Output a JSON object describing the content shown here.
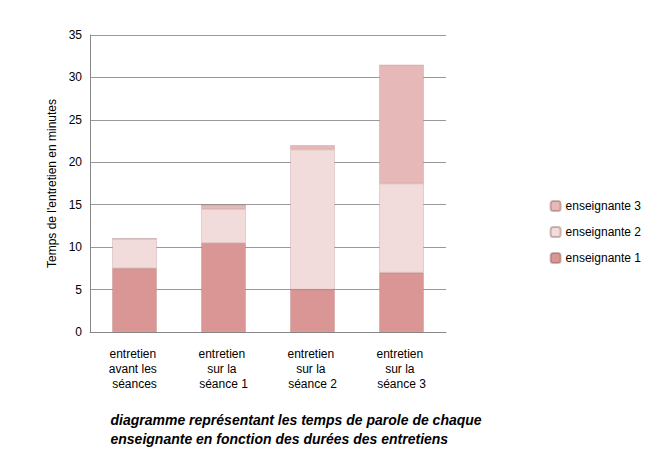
{
  "chart_data": {
    "type": "bar",
    "title": "diagramme représentant les temps de parole de chaque enseignante en fonction des durées des entretiens",
    "y_label": "Temps de l'entretien en minutes",
    "categories": [
      "entretien avant les séances",
      "entretien sur la séance 1",
      "entretien sur la séance 2",
      "entretien sur la séance 3"
    ],
    "series": [
      {
        "name": "enseignante 1",
        "color": "#d99694",
        "values": [
          7.5,
          10.5,
          5,
          7
        ]
      },
      {
        "name": "enseignante 2",
        "color": "#f2dcdb",
        "values": [
          3.5,
          4,
          16.5,
          10.5
        ]
      },
      {
        "name": "enseignante 3",
        "color": "#e6b9b8",
        "values": [
          0,
          0.5,
          0.5,
          14
        ]
      }
    ],
    "stacked": true,
    "ylim": [
      0,
      35
    ],
    "yticks": [
      0,
      5,
      10,
      15,
      20,
      25,
      30,
      35
    ],
    "grid": true,
    "legend": "right"
  }
}
